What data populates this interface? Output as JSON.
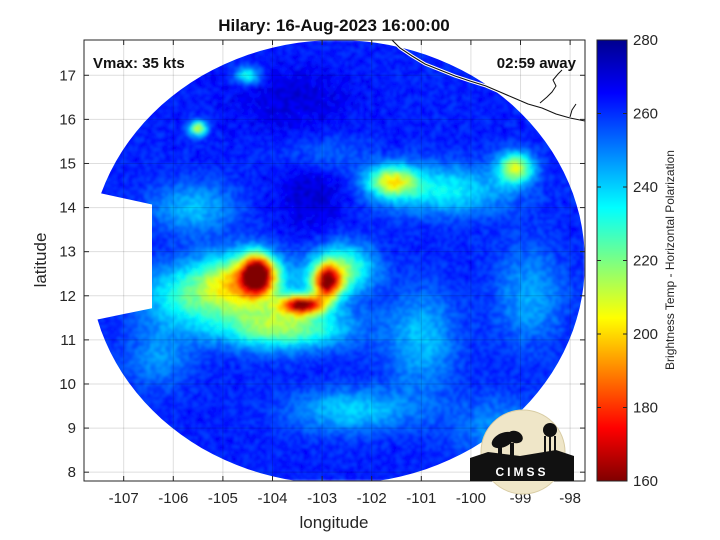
{
  "chart_data": {
    "type": "heatmap",
    "title": "Hilary: 16-Aug-2023 16:00:00",
    "xlabel": "longitude",
    "ylabel": "latitude",
    "xlim": [
      -107.8,
      -97.7
    ],
    "ylim": [
      7.8,
      17.8
    ],
    "xticks": [
      -107,
      -106,
      -105,
      -104,
      -103,
      -102,
      -101,
      -100,
      -99,
      -98
    ],
    "yticks": [
      8,
      9,
      10,
      11,
      12,
      13,
      14,
      15,
      16,
      17
    ],
    "xtick_labels": [
      "-107",
      "-106",
      "-105",
      "-104",
      "-103",
      "-102",
      "-101",
      "-100",
      "-99",
      "-98"
    ],
    "ytick_labels": [
      "8",
      "9",
      "10",
      "11",
      "12",
      "13",
      "14",
      "15",
      "16",
      "17"
    ],
    "grid": true,
    "annotations": {
      "vmax": "Vmax: 35 kts",
      "time_away": "02:59 away"
    },
    "colorbar": {
      "label": "Brightness Temp - Horizontal Polarization",
      "range": [
        160,
        280
      ],
      "ticks": [
        160,
        180,
        200,
        220,
        240,
        260,
        280
      ],
      "tick_labels": [
        "160",
        "180",
        "200",
        "220",
        "240",
        "260",
        "280"
      ],
      "colormap": "jet"
    },
    "background_value": 262,
    "features": [
      {
        "lon": -104.3,
        "lat": 12.5,
        "value": 172,
        "sx": 0.22,
        "sy": 0.3
      },
      {
        "lon": -102.9,
        "lat": 12.3,
        "value": 180,
        "sx": 0.2,
        "sy": 0.28
      },
      {
        "lon": -103.4,
        "lat": 11.8,
        "value": 175,
        "sx": 0.3,
        "sy": 0.15
      },
      {
        "lon": -104.6,
        "lat": 12.3,
        "value": 205,
        "sx": 0.6,
        "sy": 0.45
      },
      {
        "lon": -103.8,
        "lat": 11.3,
        "value": 215,
        "sx": 0.9,
        "sy": 0.35
      },
      {
        "lon": -102.6,
        "lat": 12.6,
        "value": 220,
        "sx": 0.45,
        "sy": 0.4
      },
      {
        "lon": -105.7,
        "lat": 12.0,
        "value": 232,
        "sx": 0.7,
        "sy": 0.5
      },
      {
        "lon": -101.6,
        "lat": 14.6,
        "value": 212,
        "sx": 0.35,
        "sy": 0.25
      },
      {
        "lon": -99.1,
        "lat": 14.9,
        "value": 212,
        "sx": 0.25,
        "sy": 0.25
      },
      {
        "lon": -100.5,
        "lat": 14.4,
        "value": 235,
        "sx": 0.9,
        "sy": 0.4
      },
      {
        "lon": -105.5,
        "lat": 15.8,
        "value": 210,
        "sx": 0.12,
        "sy": 0.12
      },
      {
        "lon": -104.5,
        "lat": 17.0,
        "value": 230,
        "sx": 0.18,
        "sy": 0.15
      },
      {
        "lon": -102.4,
        "lat": 9.4,
        "value": 240,
        "sx": 0.9,
        "sy": 0.35
      },
      {
        "lon": -101.0,
        "lat": 11.0,
        "value": 242,
        "sx": 0.5,
        "sy": 0.8
      },
      {
        "lon": -105.6,
        "lat": 14.0,
        "value": 242,
        "sx": 0.6,
        "sy": 0.4
      },
      {
        "lon": -98.8,
        "lat": 12.0,
        "value": 245,
        "sx": 0.5,
        "sy": 0.8
      },
      {
        "lon": -99.4,
        "lat": 9.0,
        "value": 248,
        "sx": 0.7,
        "sy": 0.5
      },
      {
        "lon": -103.0,
        "lat": 15.2,
        "value": 250,
        "sx": 0.6,
        "sy": 0.3
      },
      {
        "lon": -106.3,
        "lat": 10.6,
        "value": 248,
        "sx": 0.5,
        "sy": 0.5
      },
      {
        "lon": -103.2,
        "lat": 14.4,
        "value": 272,
        "sx": 0.5,
        "sy": 0.7
      },
      {
        "lon": -103.6,
        "lat": 16.5,
        "value": 270,
        "sx": 0.9,
        "sy": 0.5
      }
    ]
  },
  "logo": {
    "text": "CIMSS"
  }
}
